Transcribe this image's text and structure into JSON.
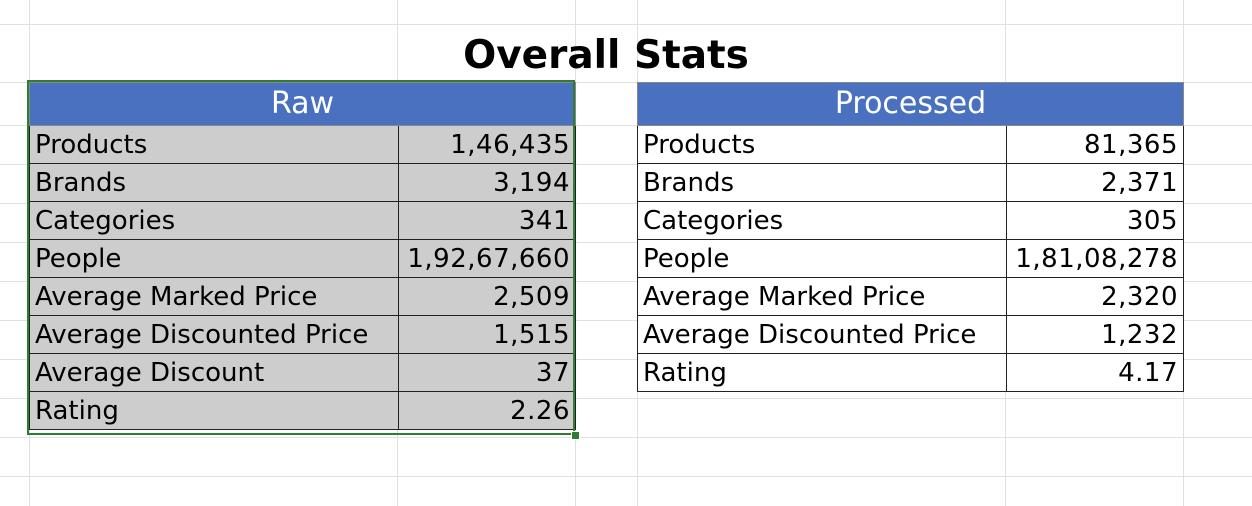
{
  "sheet": {
    "title": "Overall Stats",
    "raw": {
      "header": "Raw",
      "rows": [
        {
          "label": "Products",
          "value": "1,46,435"
        },
        {
          "label": "Brands",
          "value": "3,194"
        },
        {
          "label": "Categories",
          "value": "341"
        },
        {
          "label": "People",
          "value": "1,92,67,660"
        },
        {
          "label": "Average Marked Price",
          "value": "2,509"
        },
        {
          "label": "Average Discounted Price",
          "value": "1,515"
        },
        {
          "label": "Average Discount",
          "value": "37"
        },
        {
          "label": "Rating",
          "value": "2.26"
        }
      ]
    },
    "processed": {
      "header": "Processed",
      "rows": [
        {
          "label": "Products",
          "value": "81,365"
        },
        {
          "label": "Brands",
          "value": "2,371"
        },
        {
          "label": "Categories",
          "value": "305"
        },
        {
          "label": "People",
          "value": "1,81,08,278"
        },
        {
          "label": "Average Marked Price",
          "value": "2,320"
        },
        {
          "label": "Average Discounted Price",
          "value": "1,232"
        },
        {
          "label": "Rating",
          "value": "4.17"
        }
      ]
    }
  },
  "colors": {
    "header_fill": "#4a70c0",
    "raw_fill": "#cdcdcd",
    "selection": "#2e7d32"
  }
}
